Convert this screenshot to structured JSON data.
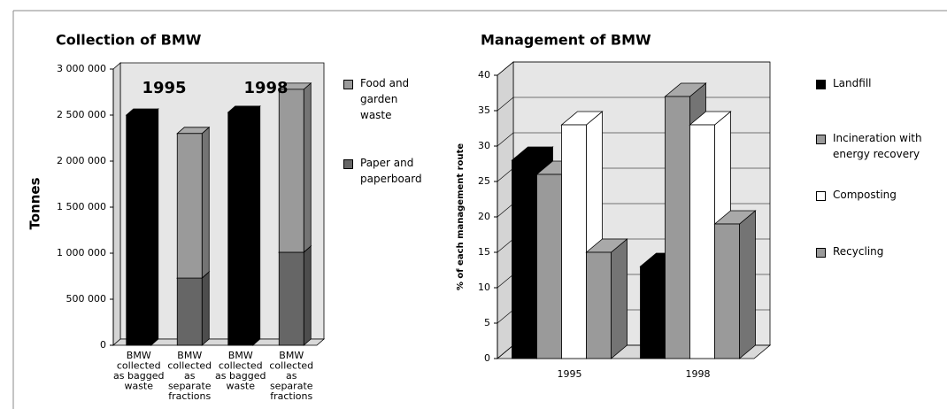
{
  "chart_data": [
    {
      "type": "bar",
      "stacked": true,
      "title": "Collection of BMW",
      "ylabel": "Tonnes",
      "annotations": [
        "1995",
        "1998"
      ],
      "categories": [
        [
          "BMW",
          "collected",
          "as bagged",
          "waste"
        ],
        [
          "BMW",
          "collected",
          "as",
          "separate",
          "fractions"
        ],
        [
          "BMW",
          "collected",
          "as bagged",
          "waste"
        ],
        [
          "BMW",
          "collected",
          "as",
          "separate",
          "fractions"
        ]
      ],
      "series": [
        {
          "color": "#000000",
          "values": [
            2500000,
            null,
            2530000,
            null
          ]
        },
        {
          "name": "Paper and paperboard",
          "color": "#666666",
          "values": [
            null,
            730000,
            null,
            1010000
          ]
        },
        {
          "name": "Food and garden waste",
          "color": "#9a9a9a",
          "values": [
            null,
            1570000,
            null,
            1770000
          ]
        }
      ],
      "ylim": [
        0,
        3000000
      ],
      "yticks": [
        0,
        {
          "value": 500000,
          "label": "500 000"
        },
        {
          "value": 1000000,
          "label": "1 000 000"
        },
        {
          "value": 1500000,
          "label": "1 500 000"
        },
        {
          "value": 2000000,
          "label": "2 000 000"
        },
        {
          "value": 2500000,
          "label": "2 500 000"
        },
        {
          "value": 3000000,
          "label": "3 000 000"
        }
      ],
      "grid": false
    },
    {
      "type": "bar",
      "stacked": false,
      "title": "Management of BMW",
      "ylabel": "% of each management route",
      "categories": [
        "1995",
        "1998"
      ],
      "series": [
        {
          "name": "Landfill",
          "color": "#000000",
          "values": [
            28,
            13
          ]
        },
        {
          "name": "Incineration with energy recovery",
          "color": "#9a9a9a",
          "values": [
            26,
            37
          ]
        },
        {
          "name": "Composting",
          "color": "#ffffff",
          "values": [
            33,
            33
          ]
        },
        {
          "name": "Recycling",
          "color": "#9a9a9a",
          "values": [
            15,
            19
          ]
        }
      ],
      "ylim": [
        0,
        40
      ],
      "yticks": [
        0,
        5,
        10,
        15,
        20,
        25,
        30,
        35,
        40
      ],
      "grid": true
    }
  ]
}
